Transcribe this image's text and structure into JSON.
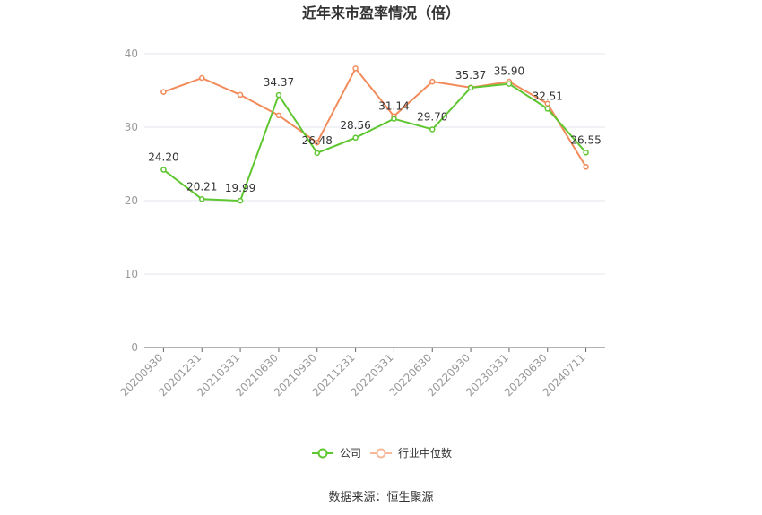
{
  "chart_data": {
    "type": "line",
    "title": "近年来市盈率情况（倍）",
    "categories": [
      "20200930",
      "20201231",
      "20210331",
      "20210630",
      "20210930",
      "20211231",
      "20220331",
      "20220630",
      "20220930",
      "20230331",
      "20230630",
      "20240711"
    ],
    "series": [
      {
        "name": "公司",
        "color": "#5ec62f",
        "values": [
          24.2,
          20.21,
          19.99,
          34.37,
          26.48,
          28.56,
          31.14,
          29.7,
          35.37,
          35.9,
          32.51,
          26.55
        ],
        "labels": [
          "24.20",
          "20.21",
          "19.99",
          "34.37",
          "26.48",
          "28.56",
          "31.14",
          "29.70",
          "35.37",
          "35.90",
          "32.51",
          "26.55"
        ]
      },
      {
        "name": "行业中位数",
        "color": "#f28b5b",
        "values": [
          34.8,
          36.7,
          34.4,
          31.6,
          27.9,
          38.0,
          31.5,
          36.2,
          35.4,
          36.2,
          33.2,
          24.6
        ]
      }
    ],
    "yticks": [
      "0",
      "10",
      "20",
      "30",
      "40"
    ],
    "ylim": [
      0,
      40
    ],
    "grid": true,
    "legend_position": "bottom-center"
  },
  "source": "数据来源：恒生聚源"
}
